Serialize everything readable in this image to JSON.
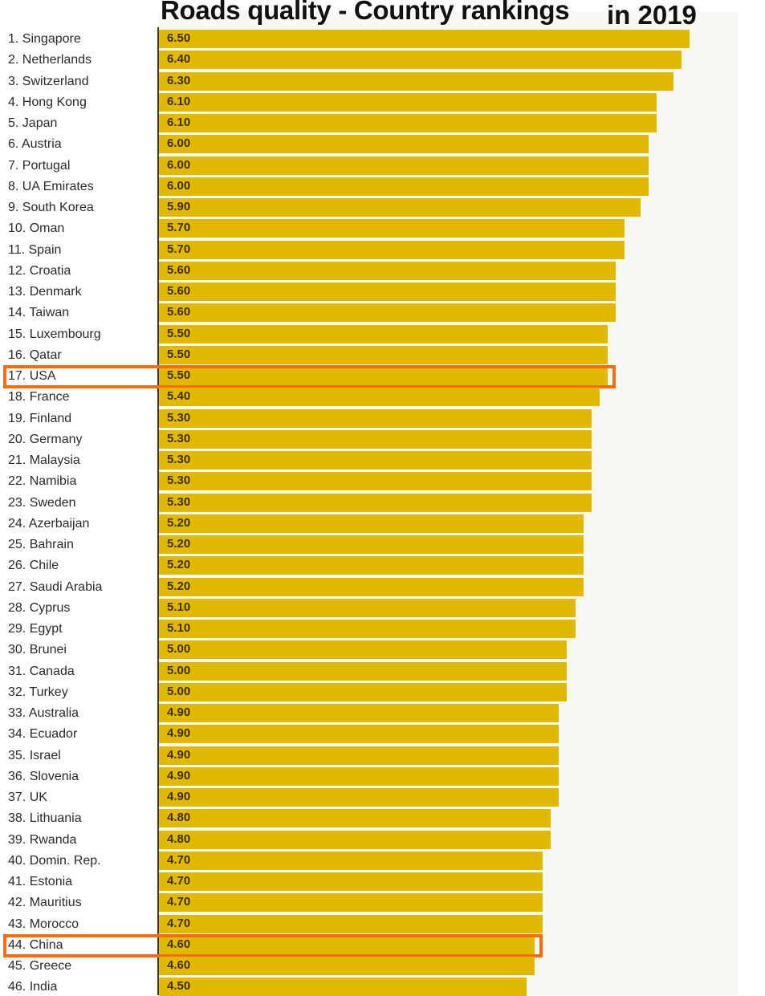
{
  "chart_data": {
    "type": "bar",
    "orientation": "horizontal",
    "title": "Roads quality - Country rankings",
    "subtitle": "in 2019",
    "xlabel": "",
    "ylabel": "",
    "xlim": [
      0,
      6.5
    ],
    "bar_color": "#e3b900",
    "highlight_color": "#f36c10",
    "highlighted": [
      "17. USA",
      "44. China"
    ],
    "categories": [
      "1. Singapore",
      "2. Netherlands",
      "3. Switzerland",
      "4. Hong Kong",
      "5. Japan",
      "6. Austria",
      "7. Portugal",
      "8. UA Emirates",
      "9. South Korea",
      "10. Oman",
      "11. Spain",
      "12. Croatia",
      "13. Denmark",
      "14. Taiwan",
      "15. Luxembourg",
      "16. Qatar",
      "17. USA",
      "18. France",
      "19. Finland",
      "20. Germany",
      "21. Malaysia",
      "22. Namibia",
      "23. Sweden",
      "24. Azerbaijan",
      "25. Bahrain",
      "26. Chile",
      "27. Saudi Arabia",
      "28. Cyprus",
      "29. Egypt",
      "30. Brunei",
      "31. Canada",
      "32. Turkey",
      "33. Australia",
      "34. Ecuador",
      "35. Israel",
      "36. Slovenia",
      "37. UK",
      "38. Lithuania",
      "39. Rwanda",
      "40. Domin. Rep.",
      "41. Estonia",
      "42. Mauritius",
      "43. Morocco",
      "44. China",
      "45. Greece",
      "46. India"
    ],
    "values": [
      6.5,
      6.4,
      6.3,
      6.1,
      6.1,
      6.0,
      6.0,
      6.0,
      5.9,
      5.7,
      5.7,
      5.6,
      5.6,
      5.6,
      5.5,
      5.5,
      5.5,
      5.4,
      5.3,
      5.3,
      5.3,
      5.3,
      5.3,
      5.2,
      5.2,
      5.2,
      5.2,
      5.1,
      5.1,
      5.0,
      5.0,
      5.0,
      4.9,
      4.9,
      4.9,
      4.9,
      4.9,
      4.8,
      4.8,
      4.7,
      4.7,
      4.7,
      4.7,
      4.6,
      4.6,
      4.5
    ],
    "value_labels": [
      "6.50",
      "6.40",
      "6.30",
      "6.10",
      "6.10",
      "6.00",
      "6.00",
      "6.00",
      "5.90",
      "5.70",
      "5.70",
      "5.60",
      "5.60",
      "5.60",
      "5.50",
      "5.50",
      "5.50",
      "5.40",
      "5.30",
      "5.30",
      "5.30",
      "5.30",
      "5.30",
      "5.20",
      "5.20",
      "5.20",
      "5.20",
      "5.10",
      "5.10",
      "5.00",
      "5.00",
      "5.00",
      "4.90",
      "4.90",
      "4.90",
      "4.90",
      "4.90",
      "4.80",
      "4.80",
      "4.70",
      "4.70",
      "4.70",
      "4.70",
      "4.60",
      "4.60",
      "4.50"
    ]
  }
}
